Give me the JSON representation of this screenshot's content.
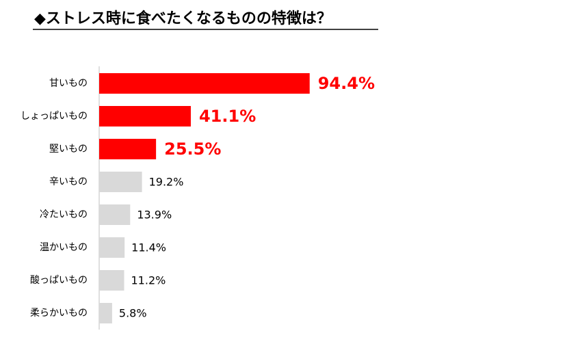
{
  "chart_data": {
    "type": "hbar",
    "title": "◆ストレス時に食べたくなるものの特徴は？",
    "categories": [
      "甘いもの",
      "しょっぱいもの",
      "堅いもの",
      "辛いもの",
      "冷たいもの",
      "温かいもの",
      "酸っぱいもの",
      "柔らかいもの"
    ],
    "values": [
      94.4,
      41.1,
      25.5,
      19.2,
      13.9,
      11.4,
      11.2,
      5.8
    ],
    "value_labels": [
      "94.4%",
      "41.1%",
      "25.5%",
      "19.2%",
      "13.9%",
      "11.4%",
      "11.2%",
      "5.8%"
    ],
    "colors": [
      "#ff0000",
      "#ff0000",
      "#ff0000",
      "#d9d9d9",
      "#d9d9d9",
      "#d9d9d9",
      "#d9d9d9",
      "#d9d9d9"
    ],
    "highlight": [
      true,
      true,
      true,
      false,
      false,
      false,
      false,
      false
    ],
    "xlim": [
      0,
      100
    ]
  }
}
